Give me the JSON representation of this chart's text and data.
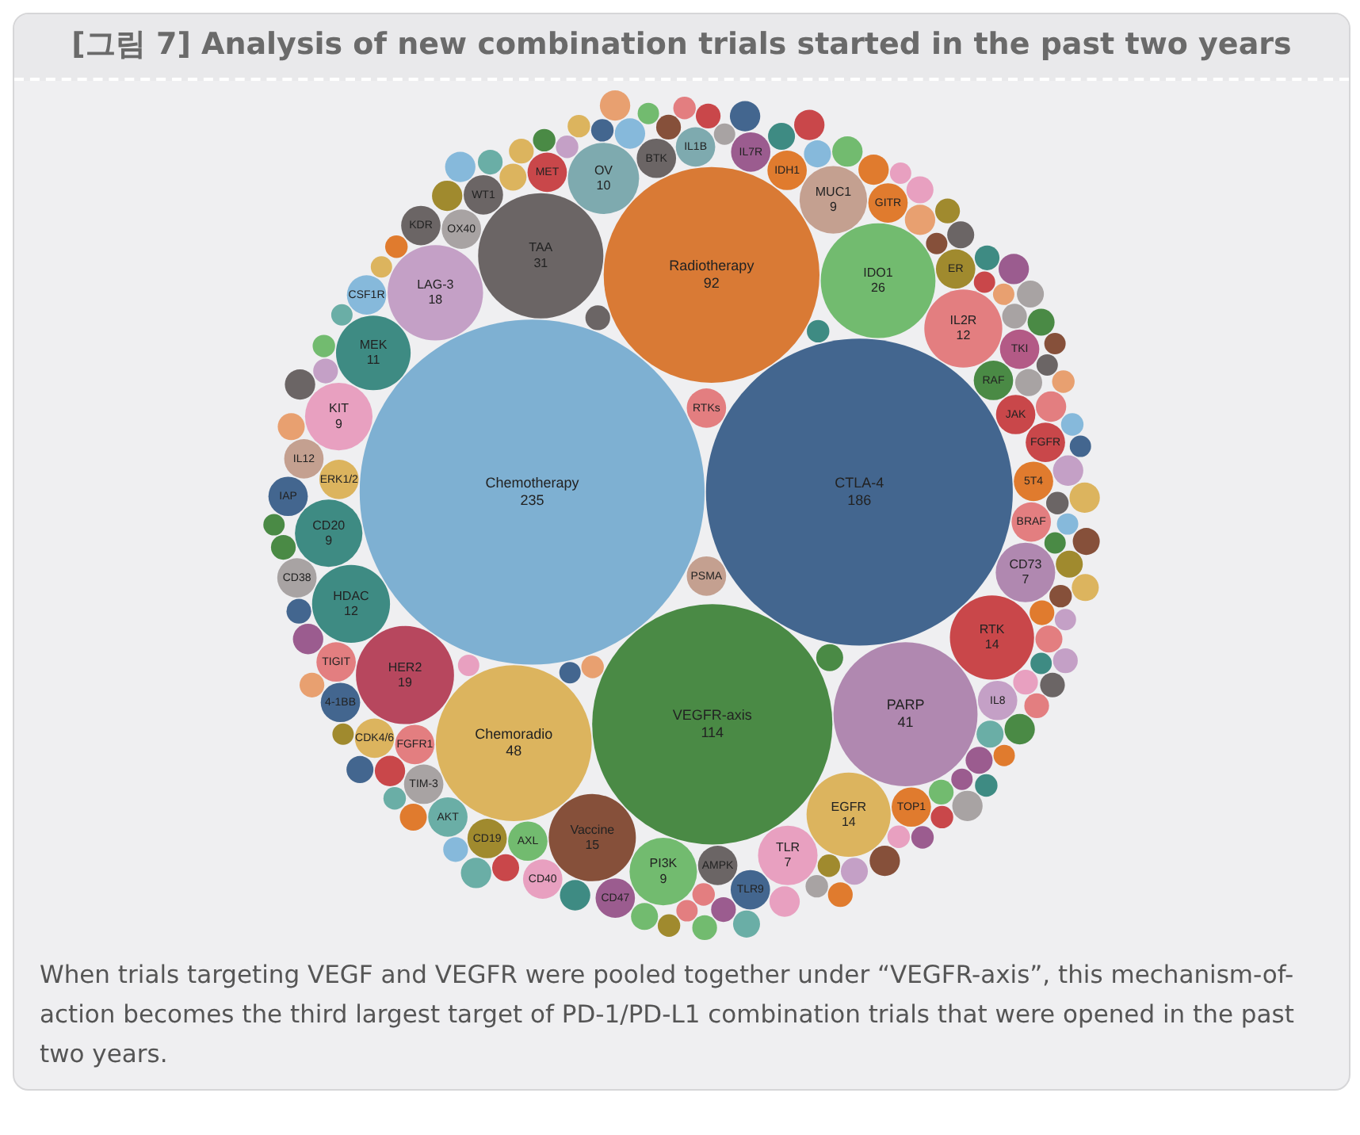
{
  "chart_data": {
    "type": "other",
    "title": "[그림 7] Analysis of new combination trials started in the past two years",
    "categories": [
      "Chemotherapy",
      "CTLA-4",
      "VEGFR-axis",
      "Radiotherapy",
      "Chemoradio",
      "PARP",
      "TAA",
      "IDO1",
      "HER2",
      "LAG-3",
      "Vaccine",
      "RTK",
      "EGFR",
      "IL2R",
      "HDAC",
      "MEK",
      "OV",
      "CD20",
      "KIT",
      "MUC1",
      "PI3K",
      "CD73",
      "TLR",
      "PSMA",
      "RTKs",
      "ERK1/2",
      "FGFR1",
      "RAF",
      "AMPK",
      "AXL",
      "BRAF",
      "JAK",
      "5T4",
      "BTK",
      "OX40",
      "IDH1",
      "IL8",
      "MET",
      "IL1B",
      "IL7R",
      "ER",
      "FGFR",
      "GITR",
      "TOP1",
      "TIM-3",
      "WT1",
      "TIGIT",
      "TKI",
      "CD19",
      "CDK4/6",
      "IL12",
      "AKT",
      "CSF1R",
      "TLR9",
      "4-1BB",
      "CD38",
      "CD40",
      "CD47",
      "IAP",
      "KDR"
    ],
    "values": [
      235,
      186,
      114,
      92,
      48,
      41,
      31,
      26,
      19,
      18,
      15,
      14,
      14,
      12,
      12,
      11,
      10,
      9,
      9,
      9,
      9,
      7,
      7,
      null,
      null,
      null,
      null,
      null,
      null,
      null,
      null,
      null,
      null,
      null,
      null,
      null,
      null,
      null,
      null,
      null,
      null,
      null,
      null,
      null,
      null,
      null,
      null,
      null,
      null,
      null,
      null,
      null,
      null,
      null,
      null,
      null,
      null,
      null,
      null,
      null
    ],
    "colors": [
      "#7eb0d2",
      "#43668f",
      "#4a8a45",
      "#d97a35",
      "#dcb45e",
      "#b088b0",
      "#6b6565",
      "#72bb6f",
      "#b7475e",
      "#c4a0c6",
      "#86503a",
      "#c9474a",
      "#dcb45e",
      "#e37e80",
      "#3e8b83",
      "#3e8b83",
      "#7eaaaf",
      "#3e8b83",
      "#e8a0c0",
      "#c4a090",
      "#72bb6f",
      "#b088b0",
      "#e8a0c0",
      "#c4a090",
      "#e37e80",
      "#dcb45e",
      "#e37e80",
      "#4a8a45",
      "#6b6565",
      "#72bb6f",
      "#e37e80",
      "#c9474a",
      "#e07b2e",
      "#6b6565",
      "#a8a3a3",
      "#e07b2e",
      "#c4a0c6",
      "#c9474a",
      "#7eaaaf",
      "#9b5c8f",
      "#a08a2e",
      "#c9474a",
      "#e07b2e",
      "#e07b2e",
      "#a8a3a3",
      "#6b6565",
      "#e37e80",
      "#b35a86",
      "#a08a2e",
      "#dcb45e",
      "#c4a090",
      "#6aaea6",
      "#86b9db",
      "#43668f",
      "#43668f",
      "#a8a3a3",
      "#e8a0c0",
      "#9b5c8f",
      "#43668f",
      "#6b6565"
    ],
    "data_labels": true,
    "annotations": [
      "When trials targeting VEGF and VEGFR were pooled together under “VEGFR-axis”, this mechanism-of-action becomes the third largest target of PD-1/PD-L1 combination trials that were opened in the past two years."
    ]
  }
}
